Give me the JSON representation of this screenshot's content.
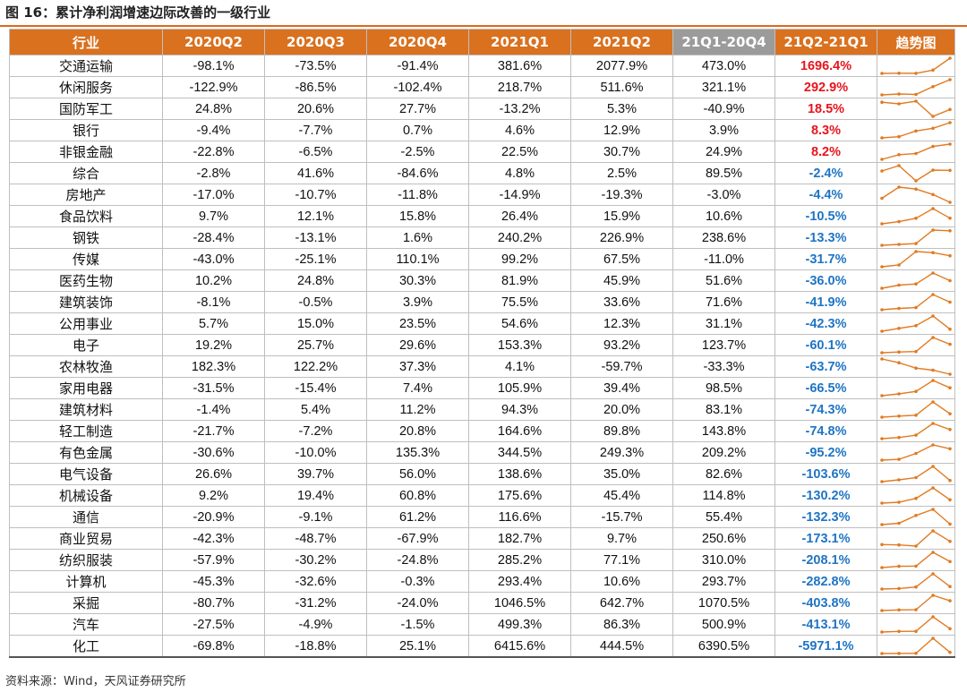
{
  "title": "图 16：累计净利润增速边际改善的一级行业",
  "source": "资料来源：Wind，天风证券研究所",
  "colors": {
    "header": "#d9711f",
    "header_gray": "#9b9b9b",
    "positive": "#e8141c",
    "negative": "#1f74c4",
    "sparkline": "#e07b22"
  },
  "table": {
    "headers": [
      "行业",
      "2020Q2",
      "2020Q3",
      "2020Q4",
      "2021Q1",
      "2021Q2",
      "21Q1-20Q4",
      "21Q2-21Q1",
      "趋势图"
    ],
    "rows": [
      {
        "industry": "交通运输",
        "q2_2020": "-98.1%",
        "q3_2020": "-73.5%",
        "q4_2020": "-91.4%",
        "q1_2021": "381.6%",
        "q2_2021": "2077.9%",
        "d1": "473.0%",
        "d2": "1696.4%",
        "series": [
          -98.1,
          -73.5,
          -91.4,
          381.6,
          2077.9
        ]
      },
      {
        "industry": "休闲服务",
        "q2_2020": "-122.9%",
        "q3_2020": "-86.5%",
        "q4_2020": "-102.4%",
        "q1_2021": "218.7%",
        "q2_2021": "511.6%",
        "d1": "321.1%",
        "d2": "292.9%",
        "series": [
          -122.9,
          -86.5,
          -102.4,
          218.7,
          511.6
        ]
      },
      {
        "industry": "国防军工",
        "q2_2020": "24.8%",
        "q3_2020": "20.6%",
        "q4_2020": "27.7%",
        "q1_2021": "-13.2%",
        "q2_2021": "5.3%",
        "d1": "-40.9%",
        "d2": "18.5%",
        "series": [
          24.8,
          20.6,
          27.7,
          -13.2,
          5.3
        ]
      },
      {
        "industry": "银行",
        "q2_2020": "-9.4%",
        "q3_2020": "-7.7%",
        "q4_2020": "0.7%",
        "q1_2021": "4.6%",
        "q2_2021": "12.9%",
        "d1": "3.9%",
        "d2": "8.3%",
        "series": [
          -9.4,
          -7.7,
          0.7,
          4.6,
          12.9
        ]
      },
      {
        "industry": "非银金融",
        "q2_2020": "-22.8%",
        "q3_2020": "-6.5%",
        "q4_2020": "-2.5%",
        "q1_2021": "22.5%",
        "q2_2021": "30.7%",
        "d1": "24.9%",
        "d2": "8.2%",
        "series": [
          -22.8,
          -6.5,
          -2.5,
          22.5,
          30.7
        ]
      },
      {
        "industry": "综合",
        "q2_2020": "-2.8%",
        "q3_2020": "41.6%",
        "q4_2020": "-84.6%",
        "q1_2021": "4.8%",
        "q2_2021": "2.5%",
        "d1": "89.5%",
        "d2": "-2.4%",
        "series": [
          -2.8,
          41.6,
          -84.6,
          4.8,
          2.5
        ]
      },
      {
        "industry": "房地产",
        "q2_2020": "-17.0%",
        "q3_2020": "-10.7%",
        "q4_2020": "-11.8%",
        "q1_2021": "-14.9%",
        "q2_2021": "-19.3%",
        "d1": "-3.0%",
        "d2": "-4.4%",
        "series": [
          -17.0,
          -10.7,
          -11.8,
          -14.9,
          -19.3
        ]
      },
      {
        "industry": "食品饮料",
        "q2_2020": "9.7%",
        "q3_2020": "12.1%",
        "q4_2020": "15.8%",
        "q1_2021": "26.4%",
        "q2_2021": "15.9%",
        "d1": "10.6%",
        "d2": "-10.5%",
        "series": [
          9.7,
          12.1,
          15.8,
          26.4,
          15.9
        ]
      },
      {
        "industry": "钢铁",
        "q2_2020": "-28.4%",
        "q3_2020": "-13.1%",
        "q4_2020": "1.6%",
        "q1_2021": "240.2%",
        "q2_2021": "226.9%",
        "d1": "238.6%",
        "d2": "-13.3%",
        "series": [
          -28.4,
          -13.1,
          1.6,
          240.2,
          226.9
        ]
      },
      {
        "industry": "传媒",
        "q2_2020": "-43.0%",
        "q3_2020": "-25.1%",
        "q4_2020": "110.1%",
        "q1_2021": "99.2%",
        "q2_2021": "67.5%",
        "d1": "-11.0%",
        "d2": "-31.7%",
        "series": [
          -43.0,
          -25.1,
          110.1,
          99.2,
          67.5
        ]
      },
      {
        "industry": "医药生物",
        "q2_2020": "10.2%",
        "q3_2020": "24.8%",
        "q4_2020": "30.3%",
        "q1_2021": "81.9%",
        "q2_2021": "45.9%",
        "d1": "51.6%",
        "d2": "-36.0%",
        "series": [
          10.2,
          24.8,
          30.3,
          81.9,
          45.9
        ]
      },
      {
        "industry": "建筑装饰",
        "q2_2020": "-8.1%",
        "q3_2020": "-0.5%",
        "q4_2020": "3.9%",
        "q1_2021": "75.5%",
        "q2_2021": "33.6%",
        "d1": "71.6%",
        "d2": "-41.9%",
        "series": [
          -8.1,
          -0.5,
          3.9,
          75.5,
          33.6
        ]
      },
      {
        "industry": "公用事业",
        "q2_2020": "5.7%",
        "q3_2020": "15.0%",
        "q4_2020": "23.5%",
        "q1_2021": "54.6%",
        "q2_2021": "12.3%",
        "d1": "31.1%",
        "d2": "-42.3%",
        "series": [
          5.7,
          15.0,
          23.5,
          54.6,
          12.3
        ]
      },
      {
        "industry": "电子",
        "q2_2020": "19.2%",
        "q3_2020": "25.7%",
        "q4_2020": "29.6%",
        "q1_2021": "153.3%",
        "q2_2021": "93.2%",
        "d1": "123.7%",
        "d2": "-60.1%",
        "series": [
          19.2,
          25.7,
          29.6,
          153.3,
          93.2
        ]
      },
      {
        "industry": "农林牧渔",
        "q2_2020": "182.3%",
        "q3_2020": "122.2%",
        "q4_2020": "37.3%",
        "q1_2021": "4.1%",
        "q2_2021": "-59.7%",
        "d1": "-33.3%",
        "d2": "-63.7%",
        "series": [
          182.3,
          122.2,
          37.3,
          4.1,
          -59.7
        ]
      },
      {
        "industry": "家用电器",
        "q2_2020": "-31.5%",
        "q3_2020": "-15.4%",
        "q4_2020": "7.4%",
        "q1_2021": "105.9%",
        "q2_2021": "39.4%",
        "d1": "98.5%",
        "d2": "-66.5%",
        "series": [
          -31.5,
          -15.4,
          7.4,
          105.9,
          39.4
        ]
      },
      {
        "industry": "建筑材料",
        "q2_2020": "-1.4%",
        "q3_2020": "5.4%",
        "q4_2020": "11.2%",
        "q1_2021": "94.3%",
        "q2_2021": "20.0%",
        "d1": "83.1%",
        "d2": "-74.3%",
        "series": [
          -1.4,
          5.4,
          11.2,
          94.3,
          20.0
        ]
      },
      {
        "industry": "轻工制造",
        "q2_2020": "-21.7%",
        "q3_2020": "-7.2%",
        "q4_2020": "20.8%",
        "q1_2021": "164.6%",
        "q2_2021": "89.8%",
        "d1": "143.8%",
        "d2": "-74.8%",
        "series": [
          -21.7,
          -7.2,
          20.8,
          164.6,
          89.8
        ]
      },
      {
        "industry": "有色金属",
        "q2_2020": "-30.6%",
        "q3_2020": "-10.0%",
        "q4_2020": "135.3%",
        "q1_2021": "344.5%",
        "q2_2021": "249.3%",
        "d1": "209.2%",
        "d2": "-95.2%",
        "series": [
          -30.6,
          -10.0,
          135.3,
          344.5,
          249.3
        ]
      },
      {
        "industry": "电气设备",
        "q2_2020": "26.6%",
        "q3_2020": "39.7%",
        "q4_2020": "56.0%",
        "q1_2021": "138.6%",
        "q2_2021": "35.0%",
        "d1": "82.6%",
        "d2": "-103.6%",
        "series": [
          26.6,
          39.7,
          56.0,
          138.6,
          35.0
        ]
      },
      {
        "industry": "机械设备",
        "q2_2020": "9.2%",
        "q3_2020": "19.4%",
        "q4_2020": "60.8%",
        "q1_2021": "175.6%",
        "q2_2021": "45.4%",
        "d1": "114.8%",
        "d2": "-130.2%",
        "series": [
          9.2,
          19.4,
          60.8,
          175.6,
          45.4
        ]
      },
      {
        "industry": "通信",
        "q2_2020": "-20.9%",
        "q3_2020": "-9.1%",
        "q4_2020": "61.2%",
        "q1_2021": "116.6%",
        "q2_2021": "-15.7%",
        "d1": "55.4%",
        "d2": "-132.3%",
        "series": [
          -20.9,
          -9.1,
          61.2,
          116.6,
          -15.7
        ]
      },
      {
        "industry": "商业贸易",
        "q2_2020": "-42.3%",
        "q3_2020": "-48.7%",
        "q4_2020": "-67.9%",
        "q1_2021": "182.7%",
        "q2_2021": "9.7%",
        "d1": "250.6%",
        "d2": "-173.1%",
        "series": [
          -42.3,
          -48.7,
          -67.9,
          182.7,
          9.7
        ]
      },
      {
        "industry": "纺织服装",
        "q2_2020": "-57.9%",
        "q3_2020": "-30.2%",
        "q4_2020": "-24.8%",
        "q1_2021": "285.2%",
        "q2_2021": "77.1%",
        "d1": "310.0%",
        "d2": "-208.1%",
        "series": [
          -57.9,
          -30.2,
          -24.8,
          285.2,
          77.1
        ]
      },
      {
        "industry": "计算机",
        "q2_2020": "-45.3%",
        "q3_2020": "-32.6%",
        "q4_2020": "-0.3%",
        "q1_2021": "293.4%",
        "q2_2021": "10.6%",
        "d1": "293.7%",
        "d2": "-282.8%",
        "series": [
          -45.3,
          -32.6,
          -0.3,
          293.4,
          10.6
        ]
      },
      {
        "industry": "采掘",
        "q2_2020": "-80.7%",
        "q3_2020": "-31.2%",
        "q4_2020": "-24.0%",
        "q1_2021": "1046.5%",
        "q2_2021": "642.7%",
        "d1": "1070.5%",
        "d2": "-403.8%",
        "series": [
          -80.7,
          -31.2,
          -24.0,
          1046.5,
          642.7
        ]
      },
      {
        "industry": "汽车",
        "q2_2020": "-27.5%",
        "q3_2020": "-4.9%",
        "q4_2020": "-1.5%",
        "q1_2021": "499.3%",
        "q2_2021": "86.3%",
        "d1": "500.9%",
        "d2": "-413.1%",
        "series": [
          -27.5,
          -4.9,
          -1.5,
          499.3,
          86.3
        ]
      },
      {
        "industry": "化工",
        "q2_2020": "-69.8%",
        "q3_2020": "-18.8%",
        "q4_2020": "25.1%",
        "q1_2021": "6415.6%",
        "q2_2021": "444.5%",
        "d1": "6390.5%",
        "d2": "-5971.1%",
        "series": [
          -69.8,
          -18.8,
          25.1,
          6415.6,
          444.5
        ]
      }
    ]
  }
}
